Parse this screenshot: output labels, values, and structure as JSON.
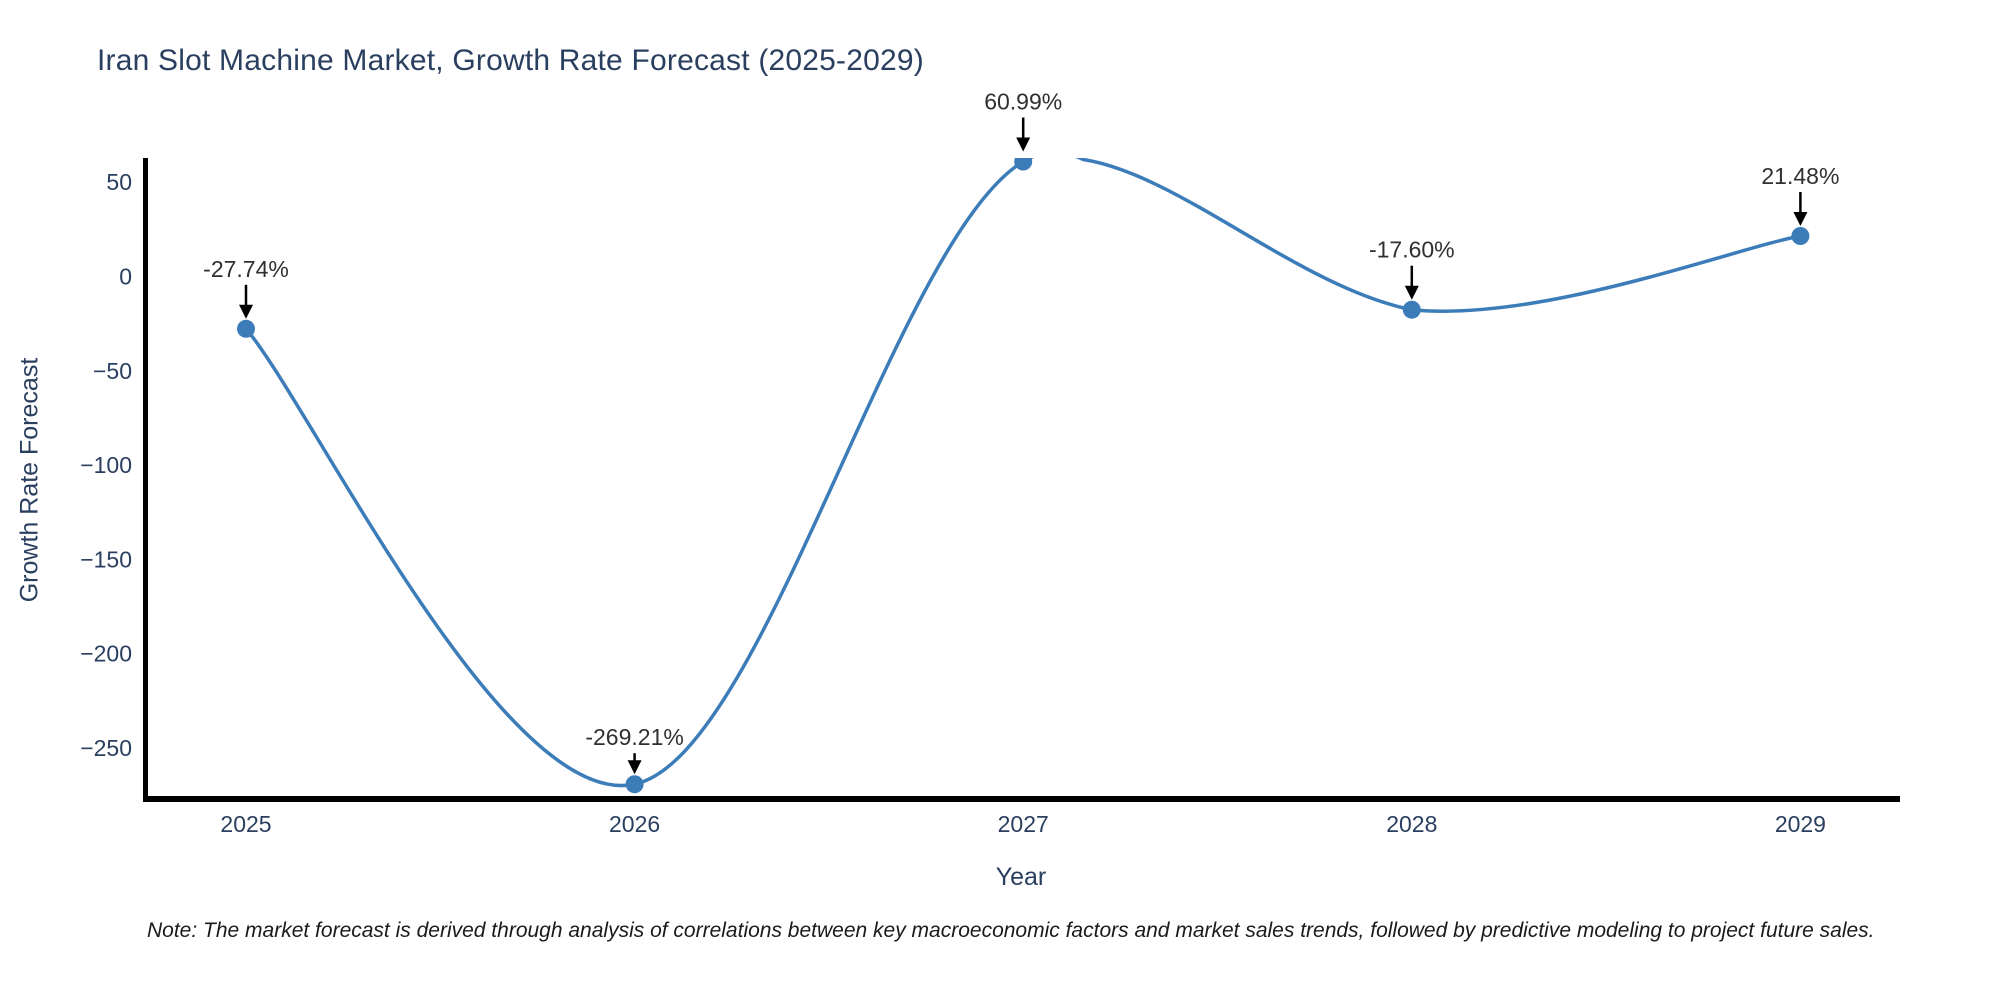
{
  "chart_data": {
    "type": "line",
    "title": "Iran Slot Machine Market, Growth Rate Forecast (2025-2029)",
    "xlabel": "Year",
    "ylabel": "Growth Rate Forecast",
    "x": [
      2025,
      2026,
      2027,
      2028,
      2029
    ],
    "series": [
      {
        "name": "Growth Rate Forecast",
        "values": [
          -27.74,
          -269.21,
          60.99,
          -17.6,
          21.48
        ],
        "point_labels": [
          "-27.74%",
          "-269.21%",
          "60.99%",
          "-17.60%",
          "21.48%"
        ]
      }
    ],
    "x_tick_labels": [
      "2025",
      "2026",
      "2027",
      "2028",
      "2029"
    ],
    "y_tick_values": [
      50,
      0,
      -50,
      -100,
      -150,
      -200,
      -250
    ],
    "y_tick_labels": [
      "50",
      "0",
      "−50",
      "−100",
      "−150",
      "−200",
      "−250"
    ],
    "ylim_display": [
      -275.4,
      62.8
    ],
    "grid": false,
    "legend_position": "none",
    "line_shape": "spline",
    "annotation_arrows": "down",
    "colors": {
      "line": "#3C7DB9",
      "marker": "#3C7DB9",
      "axis_line": "#000000",
      "title_text": "#2a3f5f",
      "tick_text": "#2a3f5f",
      "annotation_text": "#303030",
      "arrow": "#000000",
      "background": "#ffffff"
    }
  },
  "note": "Note: The market forecast is derived through analysis of correlations between key macroeconomic factors and market sales trends, followed by predictive modeling to project future sales."
}
